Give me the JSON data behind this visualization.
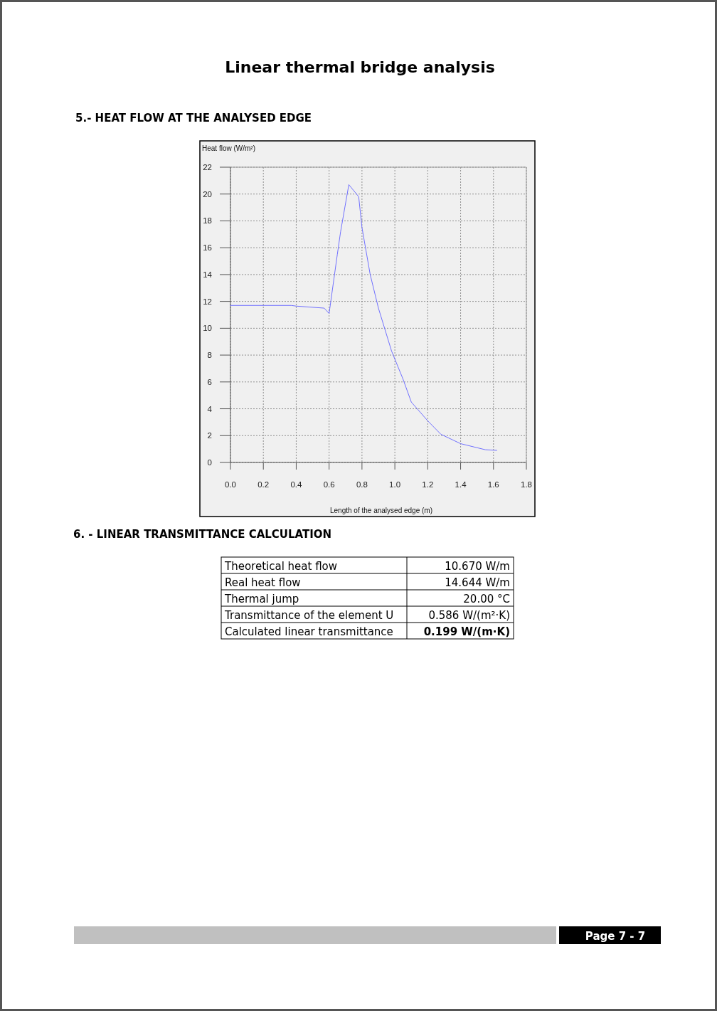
{
  "chart_data": [
    {
      "type": "line",
      "title": "Linear thermal bridge analysis",
      "subtitle": "5.- HEAT FLOW AT THE ANALYSED EDGE",
      "ylabel": "Heat flow (W/m²)",
      "xlabel": "Length of the analysed edge (m)",
      "x": [
        0,
        0.37,
        0.4,
        0.57,
        0.6,
        0.65,
        0.67,
        0.72,
        0.78,
        0.8,
        0.85,
        0.9,
        0.98,
        1.05,
        1.1,
        1.2,
        1.28,
        1.4,
        1.5,
        1.55,
        1.62
      ],
      "series": [
        {
          "color": "#7070ff",
          "values": [
            11.7,
            11.7,
            11.65,
            11.5,
            11.1,
            15.5,
            17.2,
            20.7,
            19.8,
            17.5,
            14,
            11.5,
            8.3,
            6.2,
            4.5,
            3.1,
            2.1,
            1.4,
            1.1,
            0.95,
            0.9
          ]
        }
      ],
      "xlim": [
        0,
        1.8
      ],
      "xticks": [
        {
          "value": 0,
          "label": "0.0"
        },
        0.2,
        0.4,
        0.6,
        0.8,
        {
          "value": 1,
          "label": "1.0"
        },
        1.2,
        1.4,
        1.6,
        1.8
      ],
      "ylim": [
        0,
        22
      ],
      "yticks": [
        0,
        2,
        4,
        6,
        8,
        10,
        12,
        14,
        16,
        18,
        20,
        22
      ],
      "grid": true
    },
    {
      "type": "other",
      "title": "6. - LINEAR TRANSMITTANCE CALCULATION",
      "annotations": [
        "Theoretical heat flow",
        "10.670 W/m",
        "Real heat flow",
        "14.644 W/m",
        "Thermal jump",
        "20.00 °C",
        "Transmittance of the element U",
        "0.586 W/(m²·K)",
        "Calculated linear transmittance",
        "0.199 W/(m·K)",
        "Page 7 - 7"
      ]
    }
  ]
}
